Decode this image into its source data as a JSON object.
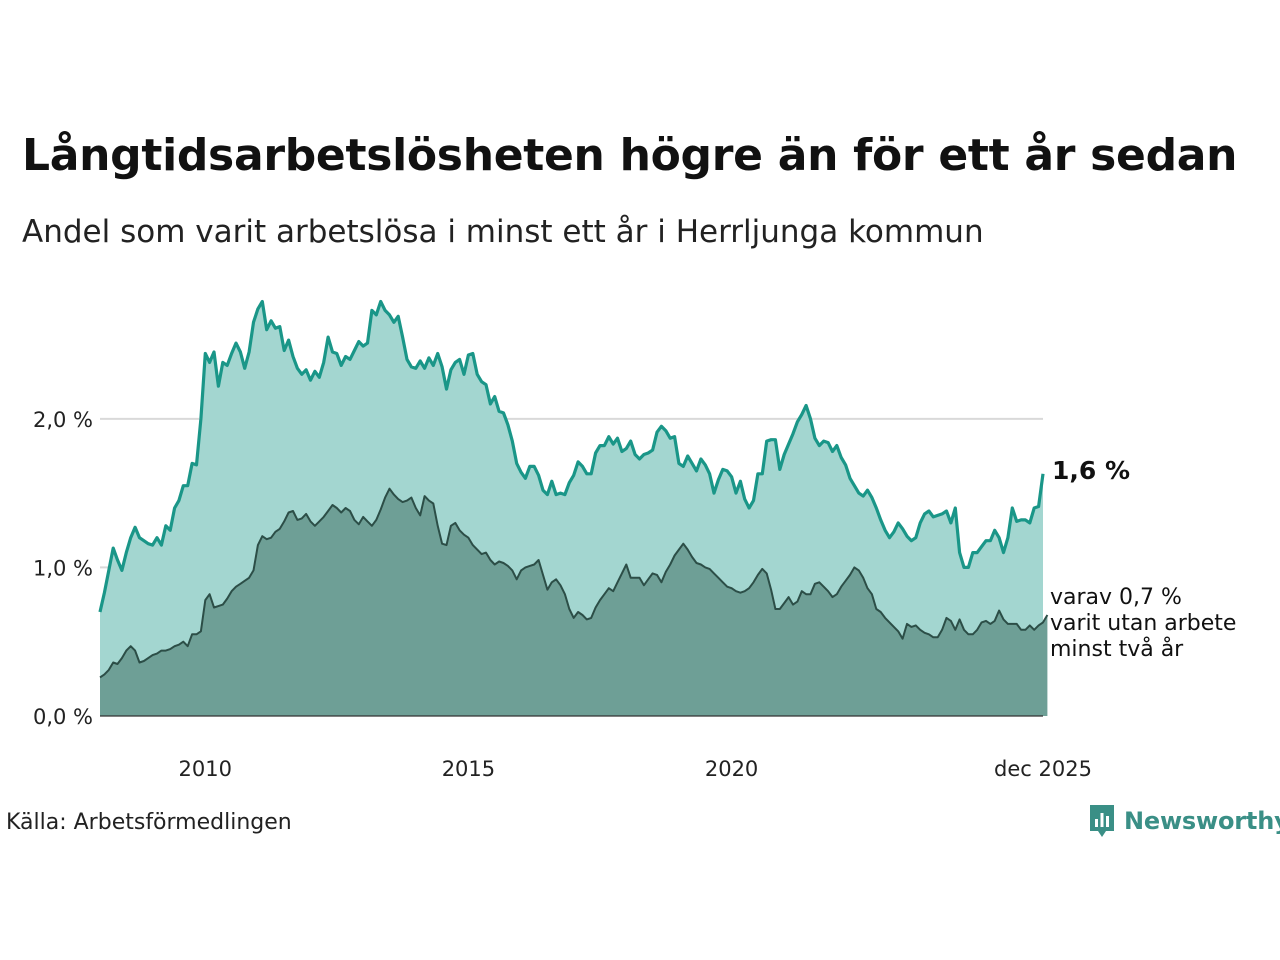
{
  "title": "Långtidsarbetslösheten högre än för ett år sedan",
  "subtitle": "Andel som varit arbetslösa i minst ett år i Herrljunga kommun",
  "source": "Källa: Arbetsförmedlingen",
  "brand": "Newsworthy",
  "colors": {
    "line_long": "#1a9688",
    "area_long": "#a3d6d0",
    "line_very_long": "#2c4e47",
    "area_very_long": "#6e9f96",
    "grid": "#d9d9d9",
    "brand": "#3a8f86"
  },
  "chart_data": {
    "type": "area",
    "title": "Långtidsarbetslösheten högre än för ett år sedan",
    "subtitle": "Andel som varit arbetslösa i minst ett år i Herrljunga kommun",
    "x_start": 2008.0,
    "x_step_months": 1,
    "xlim": [
      2008.0,
      2025.917
    ],
    "ylim": [
      0,
      2.8
    ],
    "grid": true,
    "x_ticks": [
      {
        "value": 2010,
        "label": "2010"
      },
      {
        "value": 2015,
        "label": "2015"
      },
      {
        "value": 2020,
        "label": "2020"
      },
      {
        "value": 2025.917,
        "label": "dec 2025"
      }
    ],
    "y_ticks": [
      {
        "value": 0,
        "label": "0,0 %"
      },
      {
        "value": 1,
        "label": "1,0 %"
      },
      {
        "value": 2,
        "label": "2,0 %"
      }
    ],
    "end_label": "1,6 %",
    "note_lines": [
      "varav 0,7 %",
      "varit utan arbete",
      "minst två år"
    ],
    "series": [
      {
        "name": "Arbetslösa minst ett år",
        "values": [
          0.7,
          0.83,
          0.98,
          1.13,
          1.05,
          0.98,
          1.1,
          1.2,
          1.27,
          1.2,
          1.18,
          1.16,
          1.15,
          1.2,
          1.15,
          1.28,
          1.25,
          1.4,
          1.45,
          1.55,
          1.55,
          1.7,
          1.69,
          2.0,
          2.44,
          2.38,
          2.45,
          2.22,
          2.38,
          2.36,
          2.44,
          2.51,
          2.45,
          2.34,
          2.45,
          2.65,
          2.74,
          2.79,
          2.6,
          2.66,
          2.61,
          2.62,
          2.46,
          2.53,
          2.42,
          2.34,
          2.3,
          2.33,
          2.26,
          2.32,
          2.28,
          2.38,
          2.55,
          2.45,
          2.44,
          2.36,
          2.42,
          2.4,
          2.46,
          2.52,
          2.49,
          2.51,
          2.73,
          2.7,
          2.79,
          2.73,
          2.7,
          2.65,
          2.69,
          2.55,
          2.4,
          2.35,
          2.34,
          2.39,
          2.34,
          2.41,
          2.36,
          2.44,
          2.35,
          2.2,
          2.33,
          2.38,
          2.4,
          2.3,
          2.43,
          2.44,
          2.3,
          2.25,
          2.23,
          2.1,
          2.15,
          2.05,
          2.04,
          1.96,
          1.85,
          1.7,
          1.64,
          1.6,
          1.68,
          1.68,
          1.62,
          1.52,
          1.49,
          1.58,
          1.49,
          1.5,
          1.49,
          1.57,
          1.62,
          1.71,
          1.68,
          1.63,
          1.63,
          1.77,
          1.82,
          1.82,
          1.88,
          1.83,
          1.87,
          1.78,
          1.8,
          1.85,
          1.76,
          1.73,
          1.76,
          1.77,
          1.79,
          1.91,
          1.95,
          1.92,
          1.87,
          1.88,
          1.7,
          1.68,
          1.75,
          1.7,
          1.65,
          1.73,
          1.69,
          1.63,
          1.5,
          1.59,
          1.66,
          1.65,
          1.61,
          1.5,
          1.58,
          1.46,
          1.4,
          1.45,
          1.63,
          1.63,
          1.85,
          1.86,
          1.86,
          1.66,
          1.76,
          1.83,
          1.9,
          1.98,
          2.03,
          2.09,
          2.0,
          1.87,
          1.82,
          1.85,
          1.84,
          1.78,
          1.82,
          1.74,
          1.69,
          1.6,
          1.55,
          1.5,
          1.48,
          1.52,
          1.47,
          1.4,
          1.32,
          1.25,
          1.2,
          1.24,
          1.3,
          1.26,
          1.21,
          1.18,
          1.2,
          1.3,
          1.36,
          1.38,
          1.34,
          1.35,
          1.36,
          1.38,
          1.3,
          1.4,
          1.1,
          1.0,
          1.0,
          1.1,
          1.1,
          1.14,
          1.18,
          1.18,
          1.25,
          1.2,
          1.1,
          1.2,
          1.4,
          1.31,
          1.32,
          1.32,
          1.3,
          1.4,
          1.41,
          1.63
        ]
      },
      {
        "name": "varav utan arbete minst två år",
        "values": [
          0.26,
          0.28,
          0.31,
          0.36,
          0.35,
          0.39,
          0.44,
          0.47,
          0.44,
          0.36,
          0.37,
          0.39,
          0.41,
          0.42,
          0.44,
          0.44,
          0.45,
          0.47,
          0.48,
          0.5,
          0.47,
          0.55,
          0.55,
          0.57,
          0.78,
          0.82,
          0.73,
          0.74,
          0.75,
          0.79,
          0.84,
          0.87,
          0.89,
          0.91,
          0.93,
          0.98,
          1.15,
          1.21,
          1.19,
          1.2,
          1.24,
          1.26,
          1.31,
          1.37,
          1.38,
          1.32,
          1.33,
          1.36,
          1.31,
          1.28,
          1.31,
          1.34,
          1.38,
          1.42,
          1.4,
          1.37,
          1.4,
          1.38,
          1.32,
          1.29,
          1.34,
          1.31,
          1.28,
          1.32,
          1.39,
          1.47,
          1.53,
          1.49,
          1.46,
          1.44,
          1.45,
          1.47,
          1.4,
          1.35,
          1.48,
          1.45,
          1.43,
          1.28,
          1.16,
          1.15,
          1.28,
          1.3,
          1.25,
          1.22,
          1.2,
          1.15,
          1.12,
          1.09,
          1.1,
          1.05,
          1.02,
          1.04,
          1.03,
          1.01,
          0.98,
          0.92,
          0.98,
          1.0,
          1.01,
          1.02,
          1.05,
          0.95,
          0.85,
          0.9,
          0.92,
          0.88,
          0.82,
          0.72,
          0.66,
          0.7,
          0.68,
          0.65,
          0.66,
          0.73,
          0.78,
          0.82,
          0.86,
          0.84,
          0.9,
          0.96,
          1.02,
          0.93,
          0.93,
          0.93,
          0.88,
          0.92,
          0.96,
          0.95,
          0.9,
          0.97,
          1.02,
          1.08,
          1.12,
          1.16,
          1.12,
          1.07,
          1.03,
          1.02,
          1.0,
          0.99,
          0.96,
          0.93,
          0.9,
          0.87,
          0.86,
          0.84,
          0.83,
          0.84,
          0.86,
          0.9,
          0.95,
          0.99,
          0.96,
          0.85,
          0.72,
          0.72,
          0.76,
          0.8,
          0.75,
          0.77,
          0.84,
          0.82,
          0.82,
          0.89,
          0.9,
          0.87,
          0.84,
          0.8,
          0.82,
          0.87,
          0.91,
          0.95,
          1.0,
          0.98,
          0.93,
          0.86,
          0.82,
          0.72,
          0.7,
          0.66,
          0.63,
          0.6,
          0.57,
          0.52,
          0.62,
          0.6,
          0.61,
          0.58,
          0.56,
          0.55,
          0.53,
          0.53,
          0.58,
          0.66,
          0.64,
          0.58,
          0.65,
          0.58,
          0.55,
          0.55,
          0.58,
          0.63,
          0.64,
          0.62,
          0.64,
          0.71,
          0.65,
          0.62,
          0.62,
          0.62,
          0.58,
          0.58,
          0.61,
          0.58,
          0.61,
          0.63,
          0.68
        ]
      }
    ]
  }
}
